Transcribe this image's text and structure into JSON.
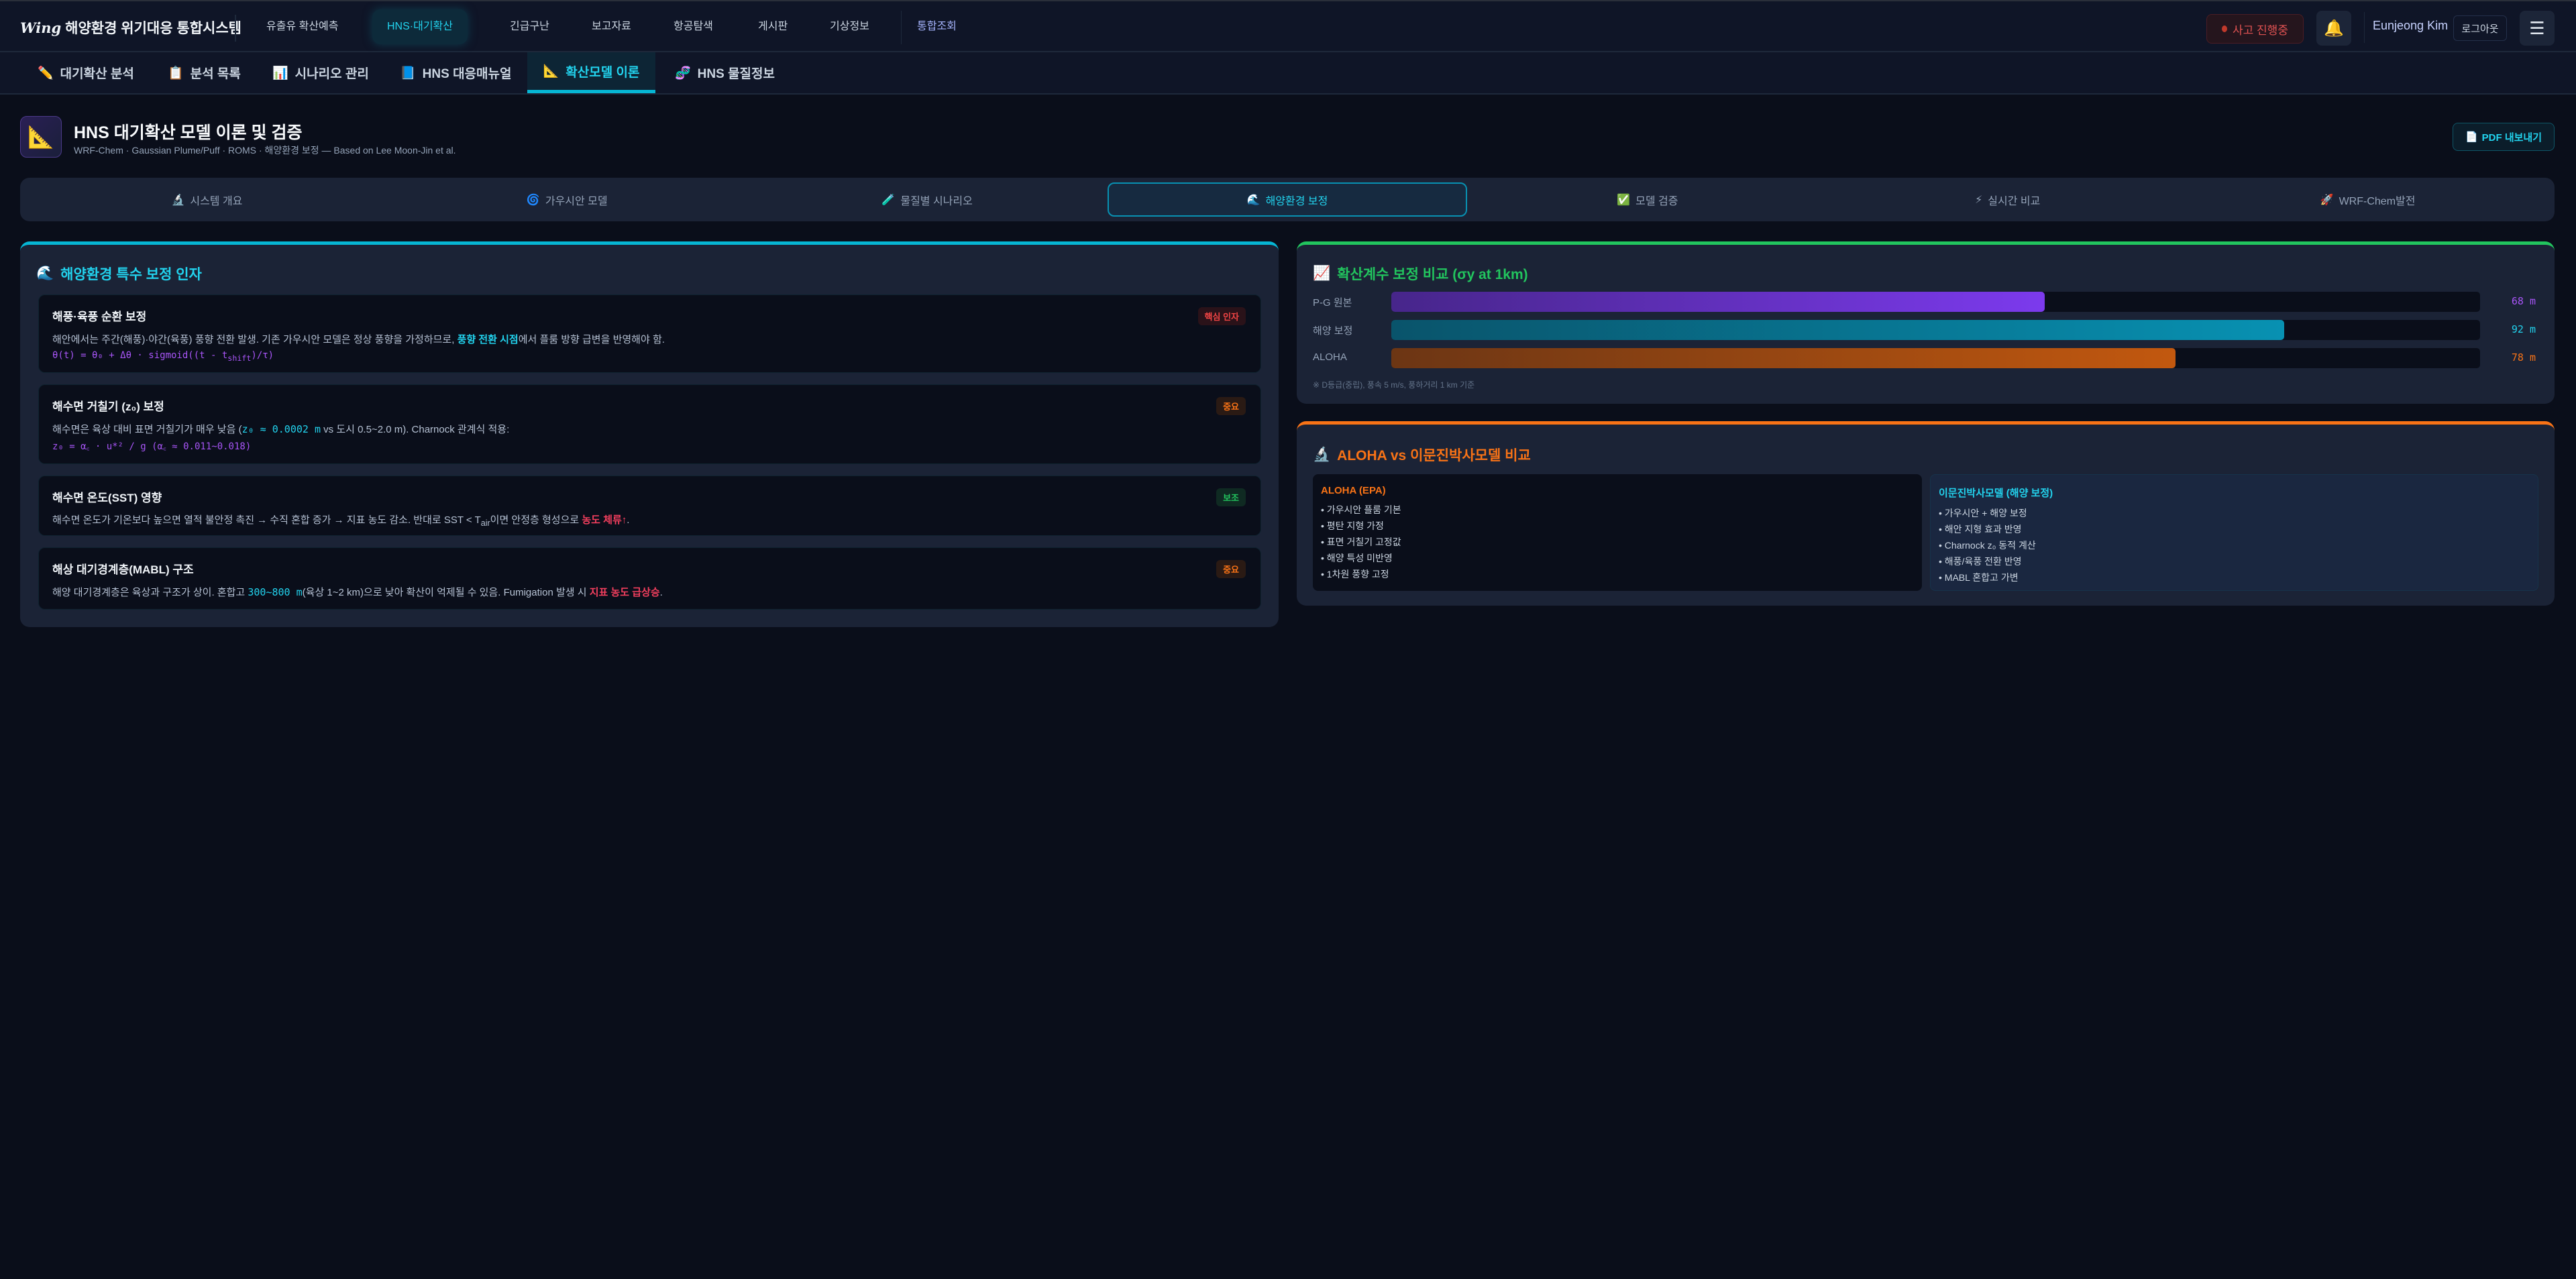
{
  "header": {
    "logo_mark": "Wing",
    "app_title": "해양환경 위기대응 통합시스템",
    "nav": [
      "유출유 확산예측",
      "HNS·대기확산",
      "긴급구난",
      "보고자료",
      "항공탐색",
      "게시판",
      "기상정보",
      "통합조회"
    ],
    "active_nav": "HNS·대기확산",
    "incident_label": "사고 진행중",
    "user_name": "Eunjeong Kim",
    "logout_label": "로그아웃",
    "icons": {
      "bell": "bell-icon",
      "menu": "hamburger-menu-icon"
    }
  },
  "subnav": {
    "items": [
      {
        "icon": "✏️",
        "label": "대기확산 분석"
      },
      {
        "icon": "📋",
        "label": "분석 목록"
      },
      {
        "icon": "📊",
        "label": "시나리오 관리"
      },
      {
        "icon": "📘",
        "label": "HNS 대응매뉴얼"
      },
      {
        "icon": "📐",
        "label": "확산모델 이론"
      },
      {
        "icon": "🧬",
        "label": "HNS 물질정보"
      }
    ],
    "active": "확산모델 이론"
  },
  "page": {
    "icon": "📐",
    "title": "HNS 대기확산 모델 이론 및 검증",
    "subtitle": "WRF-Chem · Gaussian Plume/Puff · ROMS · 해양환경 보정 — Based on Lee Moon-Jin et al.",
    "pdf_label": "PDF 내보내기",
    "pdf_icon": "📄"
  },
  "tabs": [
    {
      "icon": "🔬",
      "label": "시스템 개요"
    },
    {
      "icon": "🌀",
      "label": "가우시안 모델"
    },
    {
      "icon": "🧪",
      "label": "물질별 시나리오"
    },
    {
      "icon": "🌊",
      "label": "해양환경 보정"
    },
    {
      "icon": "✅",
      "label": "모델 검증"
    },
    {
      "icon": "⚡",
      "label": "실시간 비교"
    },
    {
      "icon": "🚀",
      "label": "WRF-Chem발전"
    }
  ],
  "active_tab": "해양환경 보정",
  "factors": {
    "icon": "🌊",
    "title": "해양환경 특수 보정 인자",
    "cards": [
      {
        "title": "해풍·육풍 순환 보정",
        "badge": "핵심 인자",
        "body_pre": "해안에서는 주간(해풍)·야간(육풍) 풍향 전환 발생. 기존 가우시안 모델은 정상 풍향을 가정하므로, ",
        "body_hl": "풍향 전환 시점",
        "body_post": "에서 플룸 방향 급변을 반영해야 함.",
        "formula_pre": "θ(t) = θ₀ + Δθ · sigmoid((t - t",
        "formula_sub": "shift",
        "formula_post": ")/τ)"
      },
      {
        "title_pre": "해수면 거칠기 (z₀) 보정",
        "badge": "중요",
        "body_pre": "해수면은 육상 대비 표면 거칠기가 매우 낮음 (",
        "body_hl": "z₀ ≈ 0.0002 m",
        "body_post": " vs 도시 0.5~2.0 m). Charnock 관계식 적용:",
        "formula": "z₀ = α꜀ · u*² / g (α꜀ ≈ 0.011~0.018)"
      },
      {
        "title": "해수면 온도(SST) 영향",
        "badge": "보조",
        "body_pre": "해수면 온도가 기온보다 높으면 열적 불안정 촉진 → 수직 혼합 증가 → 지표 농도 감소. 반대로 SST < T",
        "body_sub": "air",
        "body_mid": "이면 안정층 형성으로 ",
        "body_hl": "농도 체류↑",
        "body_post": "."
      },
      {
        "title": "해상 대기경계층(MABL) 구조",
        "badge": "중요",
        "body_pre": "해양 대기경계층은 육상과 구조가 상이. 혼합고 ",
        "body_mono": "300~800 m",
        "body_mid": "(육상 1~2 km)으로 낮아 확산이 억제될 수 있음. Fumigation 발생 시 ",
        "body_hl": "지표 농도 급상승",
        "body_post": "."
      }
    ]
  },
  "chart_data": {
    "type": "bar",
    "orientation": "horizontal",
    "title": "확산계수 보정 비교 (σy at 1km)",
    "icon": "📈",
    "categories": [
      "P-G 원본",
      "해양 보정",
      "ALOHA"
    ],
    "values": [
      68,
      92,
      78
    ],
    "value_labels": [
      "68 m",
      "92 m",
      "78 m"
    ],
    "fill_percent": [
      60,
      82,
      72
    ],
    "colors": [
      "#7c3aed",
      "#0891b2",
      "#c2580f"
    ],
    "note": "※ D등급(중립), 풍속 5 m/s, 풍하거리 1 km 기준"
  },
  "comparison": {
    "icon": "🔬",
    "title": "ALOHA vs 이문진박사모델 비교",
    "aloha": {
      "title": "ALOHA (EPA)",
      "items": [
        "가우시안 플룸 기본",
        "평탄 지형 가정",
        "표면 거칠기 고정값",
        "해양 특성 미반영",
        "1차원 풍향 고정"
      ]
    },
    "lee": {
      "title": "이문진박사모델 (해양 보정)",
      "items": [
        "가우시안 + 해양 보정",
        "해안 지형 효과 반영",
        "Charnock z₀ 동적 계산",
        "해풍/육풍 전환 반영",
        "MABL 혼합고 가변"
      ]
    }
  },
  "colors": {
    "accent": "#06b6d4",
    "green": "#22c55e",
    "orange": "#f97316",
    "red": "#f43f5e",
    "purple": "#a855f7"
  }
}
